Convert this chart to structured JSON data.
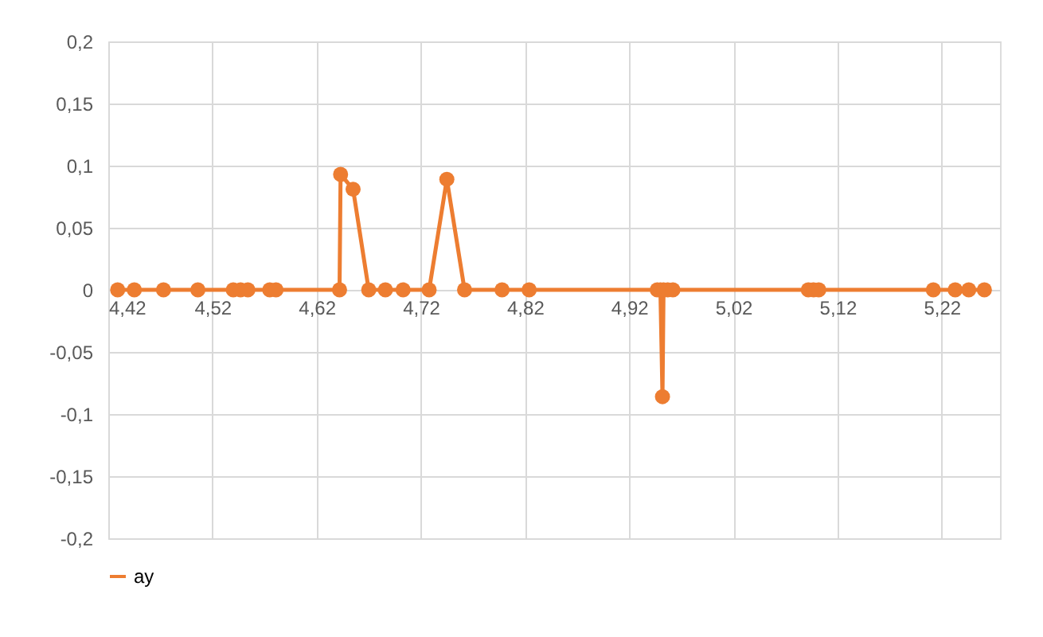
{
  "chart_data": {
    "type": "line",
    "x": [
      4.429,
      4.445,
      4.473,
      4.506,
      4.54,
      4.547,
      4.554,
      4.575,
      4.581,
      4.642,
      4.643,
      4.655,
      4.67,
      4.686,
      4.703,
      4.728,
      4.745,
      4.762,
      4.798,
      4.824,
      4.947,
      4.95,
      4.952,
      4.953,
      4.957,
      4.962,
      5.092,
      5.097,
      5.102,
      5.212,
      5.233,
      5.246,
      5.261
    ],
    "series": [
      {
        "name": "ay",
        "color": "#ed7d31",
        "values": [
          0,
          0,
          0,
          0,
          0,
          0,
          0,
          0,
          0,
          0,
          0.093,
          0.081,
          0,
          0,
          0,
          0,
          0.089,
          0,
          0,
          0,
          0,
          0,
          -0.086,
          0,
          0,
          0,
          0,
          0,
          0,
          0,
          0,
          0,
          0
        ]
      }
    ],
    "xlim": [
      4.42,
      5.276
    ],
    "xticks": [
      {
        "value": 4.42,
        "label": "4,42"
      },
      {
        "value": 4.52,
        "label": "4,52"
      },
      {
        "value": 4.62,
        "label": "4,62"
      },
      {
        "value": 4.72,
        "label": "4,72"
      },
      {
        "value": 4.82,
        "label": "4,82"
      },
      {
        "value": 4.92,
        "label": "4,92"
      },
      {
        "value": 5.02,
        "label": "5,02"
      },
      {
        "value": 5.12,
        "label": "5,12"
      },
      {
        "value": 5.22,
        "label": "5,22"
      }
    ],
    "ylim": [
      -0.2,
      0.2
    ],
    "yticks": [
      {
        "value": -0.2,
        "label": "-0,2"
      },
      {
        "value": -0.15,
        "label": "-0,15"
      },
      {
        "value": -0.1,
        "label": "-0,1"
      },
      {
        "value": -0.05,
        "label": "-0,05"
      },
      0,
      {
        "value": 0.05,
        "label": "0,05"
      },
      {
        "value": 0.1,
        "label": "0,1"
      },
      {
        "value": 0.15,
        "label": "0,15"
      },
      {
        "value": 0.2,
        "label": "0,2"
      }
    ],
    "grid": true,
    "legend": "bottom",
    "marker": "circle",
    "line_style": "solid"
  }
}
